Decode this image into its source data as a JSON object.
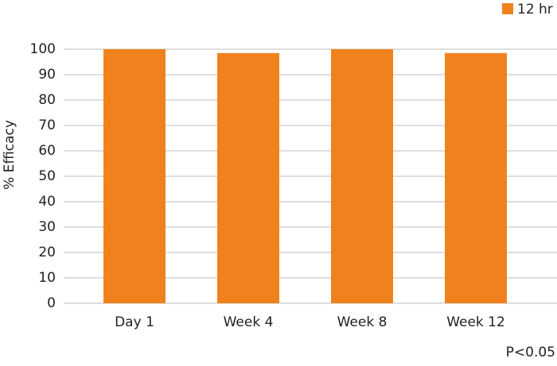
{
  "chart_data": {
    "type": "bar",
    "y_label": "% Efficacy",
    "categories": [
      "Day 1",
      "Week 4",
      "Week 8",
      "Week 12"
    ],
    "series": [
      {
        "name": "12 hr",
        "color": "#f0821e",
        "values": [
          100,
          98.5,
          100,
          98.5
        ]
      }
    ],
    "ylim": [
      0,
      100
    ],
    "yticks": [
      0,
      10,
      20,
      30,
      40,
      50,
      60,
      70,
      80,
      90,
      100
    ],
    "grid": true,
    "legend": "top-right",
    "annotation": "P<0.05"
  }
}
